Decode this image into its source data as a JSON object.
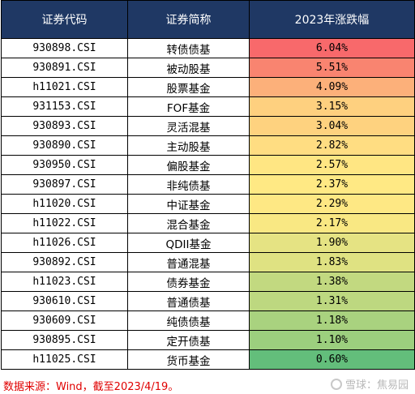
{
  "table": {
    "headers": [
      "证券代码",
      "证券简称",
      "2023年涨跌幅"
    ],
    "rows": [
      {
        "code": "930898.CSI",
        "name": "转债债基",
        "change": "6.04%",
        "color": "#f8696b"
      },
      {
        "code": "930891.CSI",
        "name": "被动股基",
        "change": "5.51%",
        "color": "#f98470"
      },
      {
        "code": "h11021.CSI",
        "name": "股票基金",
        "change": "4.09%",
        "color": "#fcb07a"
      },
      {
        "code": "931153.CSI",
        "name": "FOF基金",
        "change": "3.15%",
        "color": "#fed07f"
      },
      {
        "code": "930893.CSI",
        "name": "灵活混基",
        "change": "3.04%",
        "color": "#fed27f"
      },
      {
        "code": "930890.CSI",
        "name": "主动股基",
        "change": "2.82%",
        "color": "#ffdd82"
      },
      {
        "code": "930950.CSI",
        "name": "偏股基金",
        "change": "2.57%",
        "color": "#ffe683"
      },
      {
        "code": "930897.CSI",
        "name": "非纯债基",
        "change": "2.37%",
        "color": "#ffe984"
      },
      {
        "code": "h11020.CSI",
        "name": "中证基金",
        "change": "2.29%",
        "color": "#fee884"
      },
      {
        "code": "h11022.CSI",
        "name": "混合基金",
        "change": "2.17%",
        "color": "#f9e883"
      },
      {
        "code": "h11026.CSI",
        "name": "QDII基金",
        "change": "1.90%",
        "color": "#e5e383"
      },
      {
        "code": "930892.CSI",
        "name": "普通混基",
        "change": "1.83%",
        "color": "#dfe282"
      },
      {
        "code": "h11023.CSI",
        "name": "债券基金",
        "change": "1.38%",
        "color": "#c2d980"
      },
      {
        "code": "930610.CSI",
        "name": "普通债基",
        "change": "1.31%",
        "color": "#bdd880"
      },
      {
        "code": "930609.CSI",
        "name": "纯债债基",
        "change": "1.18%",
        "color": "#a9d27f"
      },
      {
        "code": "930895.CSI",
        "name": "定开债基",
        "change": "1.10%",
        "color": "#9ccf7e"
      },
      {
        "code": "h11025.CSI",
        "name": "货币基金",
        "change": "0.60%",
        "color": "#63be7b"
      }
    ]
  },
  "source_note": "数据来源：Wind，截至2023/4/19。",
  "watermark": "雪球：焦易园",
  "colors": {
    "header_bg": "#1f3864",
    "header_text": "#ffffff",
    "note_text": "#e00000"
  }
}
